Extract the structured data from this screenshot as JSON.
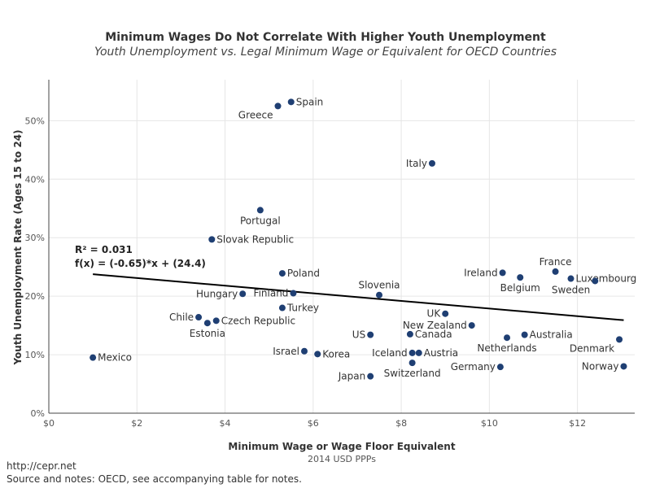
{
  "chart_data": {
    "type": "scatter",
    "title": "Minimum Wages Do Not Correlate With Higher Youth Unemployment",
    "subtitle": "Youth Unemployment vs. Legal Minimum Wage or Equivalent for OECD Countries",
    "xlabel": "Minimum Wage or Wage Floor Equivalent",
    "xlabel_sub": "2014 USD PPPs",
    "ylabel": "Youth Unemployment Rate (Ages 15 to 24)",
    "xlim": [
      0,
      13.3
    ],
    "ylim": [
      0,
      57
    ],
    "x_ticks": [
      0,
      2,
      4,
      6,
      8,
      10,
      12
    ],
    "x_tick_labels": [
      "$0",
      "$2",
      "$4",
      "$6",
      "$8",
      "$10",
      "$12"
    ],
    "y_ticks": [
      0,
      10,
      20,
      30,
      40,
      50
    ],
    "y_tick_labels": [
      "0%",
      "10%",
      "20%",
      "30%",
      "40%",
      "50%"
    ],
    "grid": true,
    "marker_color": "#1f3f73",
    "line_color": "#000000",
    "points": [
      {
        "label": "Spain",
        "x": 5.5,
        "y": 53.2,
        "pos": "right"
      },
      {
        "label": "Greece",
        "x": 5.2,
        "y": 52.5,
        "pos": "below-left"
      },
      {
        "label": "Italy",
        "x": 8.7,
        "y": 42.7,
        "pos": "left"
      },
      {
        "label": "Portugal",
        "x": 4.8,
        "y": 34.7,
        "pos": "below"
      },
      {
        "label": "Slovak Republic",
        "x": 3.7,
        "y": 29.7,
        "pos": "right"
      },
      {
        "label": "Poland",
        "x": 5.3,
        "y": 23.9,
        "pos": "right"
      },
      {
        "label": "Hungary",
        "x": 4.4,
        "y": 20.4,
        "pos": "left"
      },
      {
        "label": "Finland",
        "x": 5.55,
        "y": 20.5,
        "pos": "left"
      },
      {
        "label": "Slovenia",
        "x": 7.5,
        "y": 20.2,
        "pos": "above"
      },
      {
        "label": "Turkey",
        "x": 5.3,
        "y": 18.0,
        "pos": "right"
      },
      {
        "label": "Chile",
        "x": 3.4,
        "y": 16.4,
        "pos": "left"
      },
      {
        "label": "Estonia",
        "x": 3.6,
        "y": 15.4,
        "pos": "below"
      },
      {
        "label": "Czech Republic",
        "x": 3.8,
        "y": 15.8,
        "pos": "right"
      },
      {
        "label": "Mexico",
        "x": 1.0,
        "y": 9.5,
        "pos": "right"
      },
      {
        "label": "Israel",
        "x": 5.8,
        "y": 10.6,
        "pos": "left"
      },
      {
        "label": "Korea",
        "x": 6.1,
        "y": 10.1,
        "pos": "right"
      },
      {
        "label": "US",
        "x": 7.3,
        "y": 13.4,
        "pos": "left"
      },
      {
        "label": "Canada",
        "x": 8.2,
        "y": 13.5,
        "pos": "right"
      },
      {
        "label": "Iceland",
        "x": 8.25,
        "y": 10.3,
        "pos": "left"
      },
      {
        "label": "Austria",
        "x": 8.4,
        "y": 10.3,
        "pos": "right"
      },
      {
        "label": "Switzerland",
        "x": 8.25,
        "y": 8.6,
        "pos": "below"
      },
      {
        "label": "Japan",
        "x": 7.3,
        "y": 6.3,
        "pos": "left"
      },
      {
        "label": "UK",
        "x": 9.0,
        "y": 17.0,
        "pos": "left"
      },
      {
        "label": "New Zealand",
        "x": 9.6,
        "y": 15.0,
        "pos": "left"
      },
      {
        "label": "Ireland",
        "x": 10.3,
        "y": 24.0,
        "pos": "left"
      },
      {
        "label": "Belgium",
        "x": 10.7,
        "y": 23.2,
        "pos": "below"
      },
      {
        "label": "France",
        "x": 11.5,
        "y": 24.2,
        "pos": "above"
      },
      {
        "label": "Luxembourg",
        "x": 11.85,
        "y": 23.0,
        "pos": "right"
      },
      {
        "label": "Sweden",
        "x": 12.4,
        "y": 22.6,
        "pos": "below-left"
      },
      {
        "label": "Netherlands",
        "x": 10.4,
        "y": 12.9,
        "pos": "below"
      },
      {
        "label": "Australia",
        "x": 10.8,
        "y": 13.4,
        "pos": "right"
      },
      {
        "label": "Germany",
        "x": 10.25,
        "y": 7.9,
        "pos": "left"
      },
      {
        "label": "Denmark",
        "x": 12.95,
        "y": 12.6,
        "pos": "below-left"
      },
      {
        "label": "Norway",
        "x": 13.05,
        "y": 8.0,
        "pos": "left"
      }
    ],
    "trendline": {
      "x": [
        1.0,
        13.05
      ],
      "y": [
        23.75,
        15.9
      ]
    },
    "annotation": {
      "r2": "R² = 0.031",
      "fx": "f(x) = (-0.65)*x + (24.4)"
    }
  },
  "footer": {
    "source_url": "http://cepr.net",
    "notes": "Source and notes: OECD, see accompanying table for notes."
  }
}
